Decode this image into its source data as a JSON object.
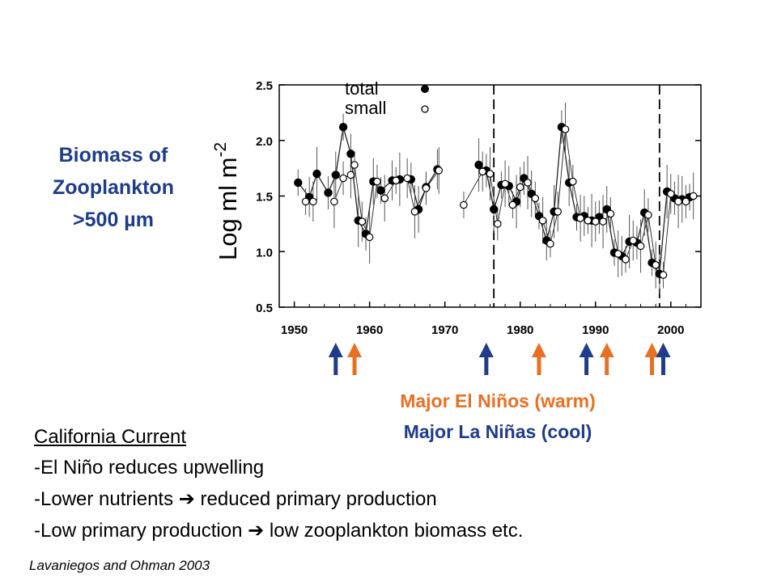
{
  "side_title": [
    "Biomass of",
    "Zooplankton",
    ">500 µm"
  ],
  "legend": {
    "warm": "Major El Niños (warm)",
    "cool": "Major La Niñas (cool)"
  },
  "notes": {
    "heading": "California Current",
    "lines": [
      {
        "a": "-El Niño reduces upwelling",
        "arrow": "",
        "b": ""
      },
      {
        "a": "-Lower nutrients ",
        "arrow": "➔",
        "b": " reduced primary production"
      },
      {
        "a": "-Low primary production ",
        "arrow": "➔",
        "b": " low zooplankton biomass etc."
      }
    ]
  },
  "citation": "Lavaniegos and Ohman 2003",
  "colors": {
    "warm": "#e87022",
    "cool": "#1f3c8a",
    "axis": "#000000"
  },
  "chart_data": {
    "type": "scatter",
    "ylabel": "Log ml m",
    "ylabel_superscript": "-2",
    "xlim": [
      1948,
      2004
    ],
    "ylim": [
      0.5,
      2.5
    ],
    "x_ticks": [
      1950,
      1960,
      1970,
      1980,
      1990,
      2000
    ],
    "y_ticks": [
      "0.5",
      "1.0",
      "1.5",
      "2.0",
      "2.5"
    ],
    "legend_position": "top-center",
    "vertical_dashed_lines": [
      1976.5,
      1998.5
    ],
    "series": [
      {
        "name": "total",
        "marker": "filled-circle",
        "points": [
          [
            1950.5,
            1.62
          ],
          [
            1952,
            1.49
          ],
          [
            1953,
            1.7
          ],
          [
            1954.5,
            1.53
          ],
          [
            1955.5,
            1.69
          ],
          [
            1956.5,
            2.12
          ],
          [
            1957.5,
            1.88
          ],
          [
            1958.5,
            1.28
          ],
          [
            1959.5,
            1.16
          ],
          [
            1960.5,
            1.63
          ],
          [
            1961.5,
            1.55
          ],
          [
            1963,
            1.64
          ],
          [
            1964,
            1.65
          ],
          [
            1965.5,
            1.65
          ],
          [
            1966.5,
            1.38
          ],
          [
            1967.5,
            1.58
          ],
          [
            1969,
            1.74
          ],
          [
            1974.5,
            1.78
          ],
          [
            1975.5,
            1.73
          ],
          [
            1976.5,
            1.38
          ],
          [
            1977.5,
            1.6
          ],
          [
            1978.5,
            1.59
          ],
          [
            1979.5,
            1.45
          ],
          [
            1980.5,
            1.66
          ],
          [
            1981.5,
            1.52
          ],
          [
            1982.5,
            1.32
          ],
          [
            1983.5,
            1.1
          ],
          [
            1984.5,
            1.36
          ],
          [
            1985.5,
            2.12
          ],
          [
            1986.5,
            1.62
          ],
          [
            1987.5,
            1.31
          ],
          [
            1988.5,
            1.32
          ],
          [
            1989.5,
            1.28
          ],
          [
            1990.5,
            1.31
          ],
          [
            1991.5,
            1.38
          ],
          [
            1992.5,
            0.99
          ],
          [
            1993.5,
            0.96
          ],
          [
            1994.5,
            1.09
          ],
          [
            1995.5,
            1.08
          ],
          [
            1996.5,
            1.35
          ],
          [
            1997.5,
            0.9
          ],
          [
            1998.5,
            0.8
          ],
          [
            1999.5,
            1.54
          ],
          [
            2000.5,
            1.48
          ],
          [
            2001.5,
            1.47
          ],
          [
            2002.5,
            1.49
          ]
        ]
      },
      {
        "name": "small",
        "marker": "open-circle",
        "points": [
          [
            1951.5,
            1.45
          ],
          [
            1952.5,
            1.45
          ],
          [
            1955.3,
            1.45
          ],
          [
            1956.5,
            1.66
          ],
          [
            1957.5,
            1.69
          ],
          [
            1958,
            1.78
          ],
          [
            1959,
            1.27
          ],
          [
            1960,
            1.13
          ],
          [
            1961,
            1.63
          ],
          [
            1962,
            1.48
          ],
          [
            1963.5,
            1.64
          ],
          [
            1965,
            1.66
          ],
          [
            1966,
            1.36
          ],
          [
            1967.5,
            1.57
          ],
          [
            1969.2,
            1.73
          ],
          [
            1972.5,
            1.42
          ],
          [
            1975,
            1.72
          ],
          [
            1976,
            1.7
          ],
          [
            1977,
            1.25
          ],
          [
            1978,
            1.61
          ],
          [
            1979,
            1.42
          ],
          [
            1980,
            1.58
          ],
          [
            1981,
            1.62
          ],
          [
            1982,
            1.48
          ],
          [
            1983,
            1.28
          ],
          [
            1984,
            1.07
          ],
          [
            1985,
            1.36
          ],
          [
            1986,
            2.1
          ],
          [
            1987,
            1.63
          ],
          [
            1988,
            1.3
          ],
          [
            1989,
            1.28
          ],
          [
            1990,
            1.27
          ],
          [
            1991,
            1.27
          ],
          [
            1992,
            1.34
          ],
          [
            1993,
            0.98
          ],
          [
            1994,
            0.93
          ],
          [
            1995,
            1.1
          ],
          [
            1996,
            1.05
          ],
          [
            1997,
            1.33
          ],
          [
            1998,
            0.88
          ],
          [
            1999,
            0.79
          ],
          [
            2000,
            1.52
          ],
          [
            2001,
            1.45
          ],
          [
            2002,
            1.45
          ],
          [
            2003,
            1.5
          ]
        ]
      }
    ],
    "annotations": [
      {
        "type": "arrow",
        "year": 1955.5,
        "kind": "cool"
      },
      {
        "type": "arrow",
        "year": 1958,
        "kind": "warm"
      },
      {
        "type": "arrow",
        "year": 1975.5,
        "kind": "cool"
      },
      {
        "type": "arrow",
        "year": 1982.5,
        "kind": "warm"
      },
      {
        "type": "arrow",
        "year": 1988.8,
        "kind": "cool"
      },
      {
        "type": "arrow",
        "year": 1991.5,
        "kind": "warm"
      },
      {
        "type": "arrow",
        "year": 1997.5,
        "kind": "warm"
      },
      {
        "type": "arrow",
        "year": 1999,
        "kind": "cool"
      }
    ]
  }
}
